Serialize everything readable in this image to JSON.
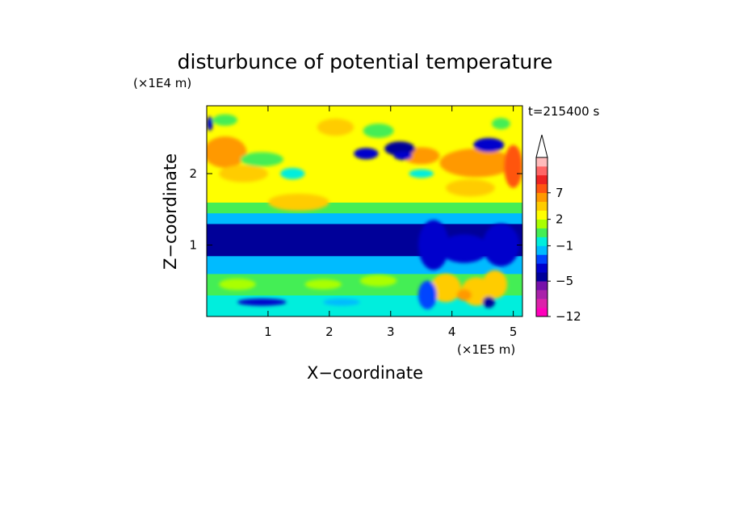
{
  "chart_data": {
    "type": "heatmap",
    "title": "disturbunce of potential temperature",
    "xlabel": "X−coordinate",
    "ylabel": "Z−coordinate",
    "x_unit": "(×1E5 m)",
    "y_unit": "(×1E4 m)",
    "time_label": "t=215400 s",
    "xlim": [
      0,
      5.15
    ],
    "ylim": [
      0,
      2.95
    ],
    "x_ticks": [
      "1",
      "2",
      "3",
      "4",
      "5"
    ],
    "y_ticks": [
      "1",
      "2"
    ],
    "colorbar": {
      "levels": [
        -12,
        -10,
        -8,
        -6,
        -5,
        -4,
        -3,
        -2,
        -1,
        0,
        1,
        2,
        3,
        4,
        7,
        8,
        9,
        10
      ],
      "colors": [
        "#ff00bb",
        "#dd22aa",
        "#aa22aa",
        "#7711aa",
        "#000099",
        "#0000cc",
        "#0044ff",
        "#00bbff",
        "#00eedd",
        "#44ee55",
        "#aaff00",
        "#ffff00",
        "#ffcc00",
        "#ff9900",
        "#ff5511",
        "#ee2222",
        "#ff6666",
        "#ffbbbb"
      ],
      "labels": [
        "7",
        "2",
        "−1",
        "−5",
        "−12"
      ],
      "label_values": [
        7,
        2,
        -1,
        -5,
        -12
      ],
      "extend": "max"
    },
    "features": [
      {
        "z_range": [
          0,
          0.3
        ],
        "value": -1
      },
      {
        "z_range": [
          0.3,
          0.6
        ],
        "value": 0
      },
      {
        "z_range": [
          0.6,
          0.85
        ],
        "value": -2
      },
      {
        "z_range": [
          0.85,
          1.3
        ],
        "value": -5
      },
      {
        "z_range": [
          1.3,
          1.45
        ],
        "value": -2
      },
      {
        "z_range": [
          1.45,
          1.6
        ],
        "value": 0
      },
      {
        "z_range": [
          1.6,
          2.95
        ],
        "value": 2
      }
    ]
  }
}
